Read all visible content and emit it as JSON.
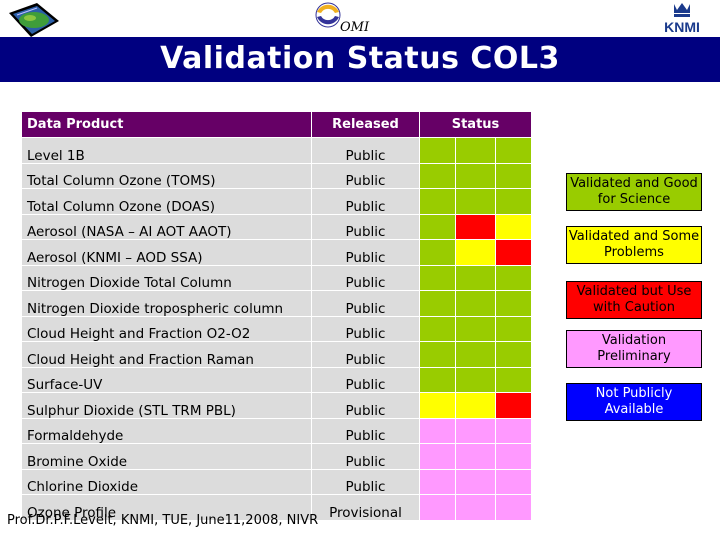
{
  "header": {
    "title": "Validation Status COL3",
    "omi_logo_text": "OMI",
    "knmi_logo_text": "KNMI"
  },
  "table": {
    "headers": [
      "Data Product",
      "Released",
      "Status"
    ],
    "rows": [
      {
        "product": "Level 1B",
        "released": "Public",
        "status": [
          "green",
          "green",
          "green"
        ]
      },
      {
        "product": "Total Column Ozone (TOMS)",
        "released": "Public",
        "status": [
          "green",
          "green",
          "green"
        ]
      },
      {
        "product": "Total Column Ozone (DOAS)",
        "released": "Public",
        "status": [
          "green",
          "green",
          "green"
        ]
      },
      {
        "product": "Aerosol (NASA – AI AOT AAOT)",
        "released": "Public",
        "status": [
          "green",
          "red",
          "yellow"
        ]
      },
      {
        "product": "Aerosol (KNMI – AOD SSA)",
        "released": "Public",
        "status": [
          "green",
          "yellow",
          "red"
        ]
      },
      {
        "product": "Nitrogen Dioxide Total Column",
        "released": "Public",
        "status": [
          "green",
          "green",
          "green"
        ]
      },
      {
        "product": "Nitrogen Dioxide tropospheric column",
        "released": "Public",
        "status": [
          "green",
          "green",
          "green"
        ]
      },
      {
        "product": "Cloud Height and Fraction O2-O2",
        "released": "Public",
        "status": [
          "green",
          "green",
          "green"
        ]
      },
      {
        "product": "Cloud Height and Fraction Raman",
        "released": "Public",
        "status": [
          "green",
          "green",
          "green"
        ]
      },
      {
        "product": "Surface-UV",
        "released": "Public",
        "status": [
          "green",
          "green",
          "green"
        ]
      },
      {
        "product": "Sulphur Dioxide (STL TRM PBL)",
        "released": "Public",
        "status": [
          "yellow",
          "yellow",
          "red"
        ]
      },
      {
        "product": "Formaldehyde",
        "released": "Public",
        "status": [
          "pink",
          "pink",
          "pink"
        ]
      },
      {
        "product": "Bromine Oxide",
        "released": "Public",
        "status": [
          "pink",
          "pink",
          "pink"
        ]
      },
      {
        "product": "Chlorine Dioxide",
        "released": "Public",
        "status": [
          "pink",
          "pink",
          "pink"
        ]
      },
      {
        "product": "Ozone Profile",
        "released": "Provisional",
        "status": [
          "pink",
          "pink",
          "pink"
        ]
      }
    ]
  },
  "legend": [
    {
      "label": "Validated and Good for Science",
      "color": "#99cc00"
    },
    {
      "label": "Validated and Some Problems",
      "color": "#ffff00"
    },
    {
      "label": "Validated but Use with Caution",
      "color": "#ff0000"
    },
    {
      "label": "Validation Preliminary",
      "color": "#ff99ff"
    },
    {
      "label": "Not Publicly Available",
      "color": "#0000ff"
    }
  ],
  "footer": {
    "text": "Prof.Dr.P.F.Levelt, KNMI, TUE, June11,2008, NIVR"
  },
  "colors": {
    "title_bar": "#000080",
    "header_row": "#660066",
    "cell_bg": "#dcdcdc"
  }
}
